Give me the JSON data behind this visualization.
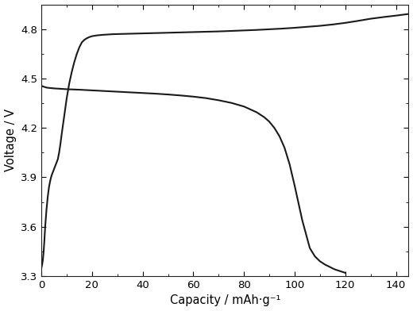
{
  "title": "",
  "xlabel": "Capacity / mAh·g⁻¹",
  "ylabel": "Voltage / V",
  "xlim": [
    0,
    145
  ],
  "ylim": [
    3.3,
    4.95
  ],
  "xticks": [
    0,
    20,
    40,
    60,
    80,
    100,
    120,
    140
  ],
  "yticks": [
    3.3,
    3.6,
    3.9,
    4.2,
    4.5,
    4.8
  ],
  "line_color": "#1a1a1a",
  "line_width": 1.5,
  "background_color": "#ffffff",
  "charge_curve": {
    "x": [
      0.0,
      0.3,
      0.6,
      0.9,
      1.2,
      1.5,
      2.0,
      2.5,
      3.0,
      3.5,
      4.0,
      4.5,
      5.0,
      5.5,
      6.0,
      6.5,
      7.0,
      7.5,
      8.0,
      9.0,
      10.0,
      11.0,
      12.0,
      13.0,
      14.0,
      15.0,
      16.0,
      17.0,
      18.0,
      19.0,
      20.0,
      22.0,
      24.0,
      26.0,
      28.0,
      30.0,
      35.0,
      40.0,
      45.0,
      50.0,
      55.0,
      60.0,
      65.0,
      70.0,
      75.0,
      80.0,
      85.0,
      90.0,
      95.0,
      100.0,
      105.0,
      110.0,
      115.0,
      120.0,
      125.0,
      130.0,
      135.0,
      140.0,
      143.0,
      145.0
    ],
    "y": [
      3.35,
      3.37,
      3.4,
      3.45,
      3.52,
      3.6,
      3.7,
      3.78,
      3.84,
      3.88,
      3.91,
      3.93,
      3.95,
      3.97,
      3.99,
      4.01,
      4.05,
      4.1,
      4.16,
      4.27,
      4.38,
      4.47,
      4.54,
      4.6,
      4.65,
      4.69,
      4.72,
      4.735,
      4.745,
      4.752,
      4.757,
      4.762,
      4.765,
      4.767,
      4.769,
      4.77,
      4.772,
      4.774,
      4.776,
      4.778,
      4.78,
      4.782,
      4.784,
      4.786,
      4.789,
      4.792,
      4.795,
      4.799,
      4.803,
      4.808,
      4.814,
      4.82,
      4.828,
      4.838,
      4.85,
      4.863,
      4.873,
      4.882,
      4.888,
      4.892
    ]
  },
  "discharge_curve": {
    "x": [
      0.0,
      1.0,
      2.0,
      3.0,
      5.0,
      8.0,
      10.0,
      15.0,
      20.0,
      25.0,
      30.0,
      35.0,
      40.0,
      45.0,
      50.0,
      55.0,
      60.0,
      65.0,
      70.0,
      75.0,
      80.0,
      85.0,
      88.0,
      90.0,
      92.0,
      94.0,
      96.0,
      98.0,
      100.0,
      103.0,
      106.0,
      108.0,
      110.0,
      112.0,
      114.0,
      115.0,
      116.0,
      117.0,
      118.0,
      119.0,
      120.0
    ],
    "y": [
      4.455,
      4.45,
      4.445,
      4.443,
      4.44,
      4.437,
      4.435,
      4.432,
      4.428,
      4.424,
      4.42,
      4.416,
      4.412,
      4.408,
      4.403,
      4.397,
      4.39,
      4.381,
      4.368,
      4.352,
      4.33,
      4.295,
      4.265,
      4.238,
      4.2,
      4.15,
      4.08,
      3.98,
      3.85,
      3.64,
      3.47,
      3.42,
      3.39,
      3.37,
      3.355,
      3.347,
      3.34,
      3.335,
      3.33,
      3.325,
      3.32
    ]
  }
}
